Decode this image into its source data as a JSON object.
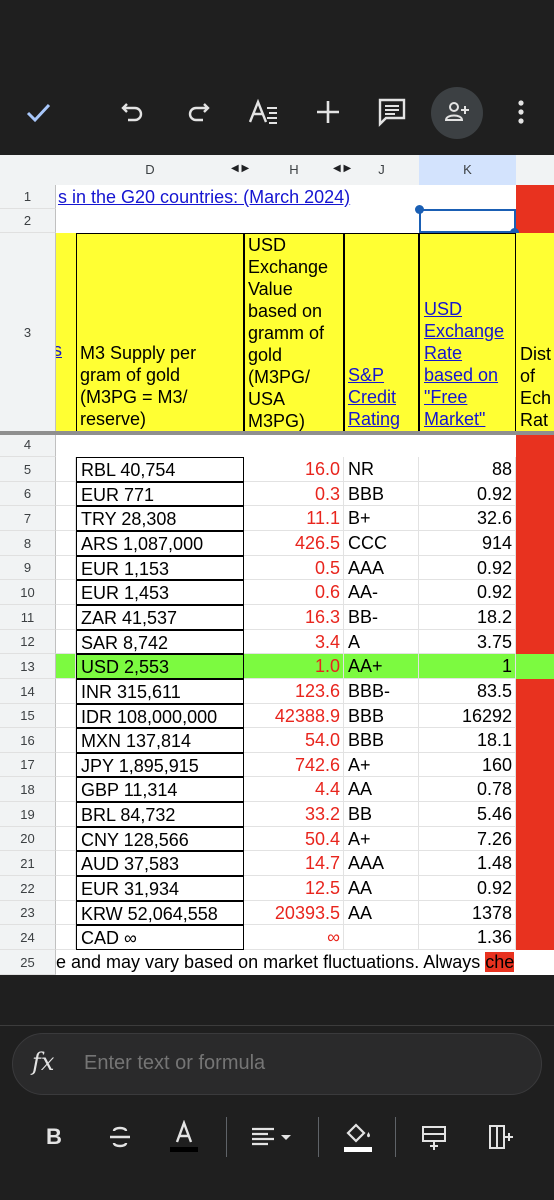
{
  "toolbar": {
    "icons": [
      "check-icon",
      "undo-icon",
      "redo-icon",
      "text-format-icon",
      "add-icon",
      "comment-icon",
      "share-icon",
      "more-icon"
    ]
  },
  "columns": {
    "d": "D",
    "h": "H",
    "j": "J",
    "k": "K"
  },
  "rows": [
    "1",
    "2",
    "3",
    "4",
    "5",
    "6",
    "7",
    "8",
    "9",
    "10",
    "11",
    "12",
    "13",
    "14",
    "15",
    "16",
    "17",
    "18",
    "19",
    "20",
    "21",
    "22",
    "23",
    "24",
    "25"
  ],
  "sheet": {
    "title": "s in the G20 countries: (March 2024)",
    "header": {
      "left_fragment": "s",
      "m3": "M3 Supply per gram of gold (M3PG = M3/ reserve)",
      "usd_value": "USD Exchange Value based on gramm of gold (M3PG/ USA M3PG)",
      "sp": "S&P Credit Rating",
      "usd_rate": "USD Exchange Rate based on \"Free Market\"",
      "dist": "Dist of Ech Rat"
    },
    "data": [
      {
        "m3": "RBL 40,754",
        "val": "16.0",
        "rating": "NR",
        "rate": "88"
      },
      {
        "m3": "EUR 771",
        "val": "0.3",
        "rating": "BBB",
        "rate": "0.92"
      },
      {
        "m3": "TRY 28,308",
        "val": "11.1",
        "rating": "B+",
        "rate": "32.6"
      },
      {
        "m3": "ARS 1,087,000",
        "val": "426.5",
        "rating": "CCC",
        "rate": "914"
      },
      {
        "m3": "EUR 1,153",
        "val": "0.5",
        "rating": "AAA",
        "rate": "0.92"
      },
      {
        "m3": "EUR 1,453",
        "val": "0.6",
        "rating": "AA-",
        "rate": "0.92"
      },
      {
        "m3": "ZAR 41,537",
        "val": "16.3",
        "rating": "BB-",
        "rate": "18.2"
      },
      {
        "m3": "SAR 8,742",
        "val": "3.4",
        "rating": "A",
        "rate": "3.75"
      },
      {
        "m3": "USD 2,553",
        "val": "1.0",
        "rating": "AA+",
        "rate": "1"
      },
      {
        "m3": "INR 315,611",
        "val": "123.6",
        "rating": "BBB-",
        "rate": "83.5"
      },
      {
        "m3": "IDR 108,000,000",
        "val": "42388.9",
        "rating": "BBB",
        "rate": "16292"
      },
      {
        "m3": "MXN 137,814",
        "val": "54.0",
        "rating": "BBB",
        "rate": "18.1"
      },
      {
        "m3": "JPY 1,895,915",
        "val": "742.6",
        "rating": "A+",
        "rate": "160"
      },
      {
        "m3": "GBP 11,314",
        "val": "4.4",
        "rating": "AA",
        "rate": "0.78"
      },
      {
        "m3": "BRL 84,732",
        "val": "33.2",
        "rating": "BB",
        "rate": "5.46"
      },
      {
        "m3": "CNY 128,566",
        "val": "50.4",
        "rating": "A+",
        "rate": "7.26"
      },
      {
        "m3": "AUD 37,583",
        "val": "14.7",
        "rating": "AAA",
        "rate": "1.48"
      },
      {
        "m3": "EUR 31,934",
        "val": "12.5",
        "rating": "AA",
        "rate": "0.92"
      },
      {
        "m3": "KRW 52,064,558",
        "val": "20393.5",
        "rating": "AA",
        "rate": "1378"
      },
      {
        "m3": "CAD ∞",
        "val": "∞",
        "rating": "",
        "rate": "1.36"
      }
    ],
    "footnote_a": "e and may vary based on market fluctuations. Always ",
    "footnote_b": "che"
  },
  "formula_bar": {
    "fx": "fx",
    "placeholder": "Enter text or formula"
  },
  "format_bar": {
    "bold": "B"
  },
  "colors": {
    "yellow": "#ffff33",
    "red_col": "#e8321f",
    "highlight_green": "#7cfa40",
    "selected_col": "#d3e3fd",
    "red_text": "#e8251d"
  }
}
